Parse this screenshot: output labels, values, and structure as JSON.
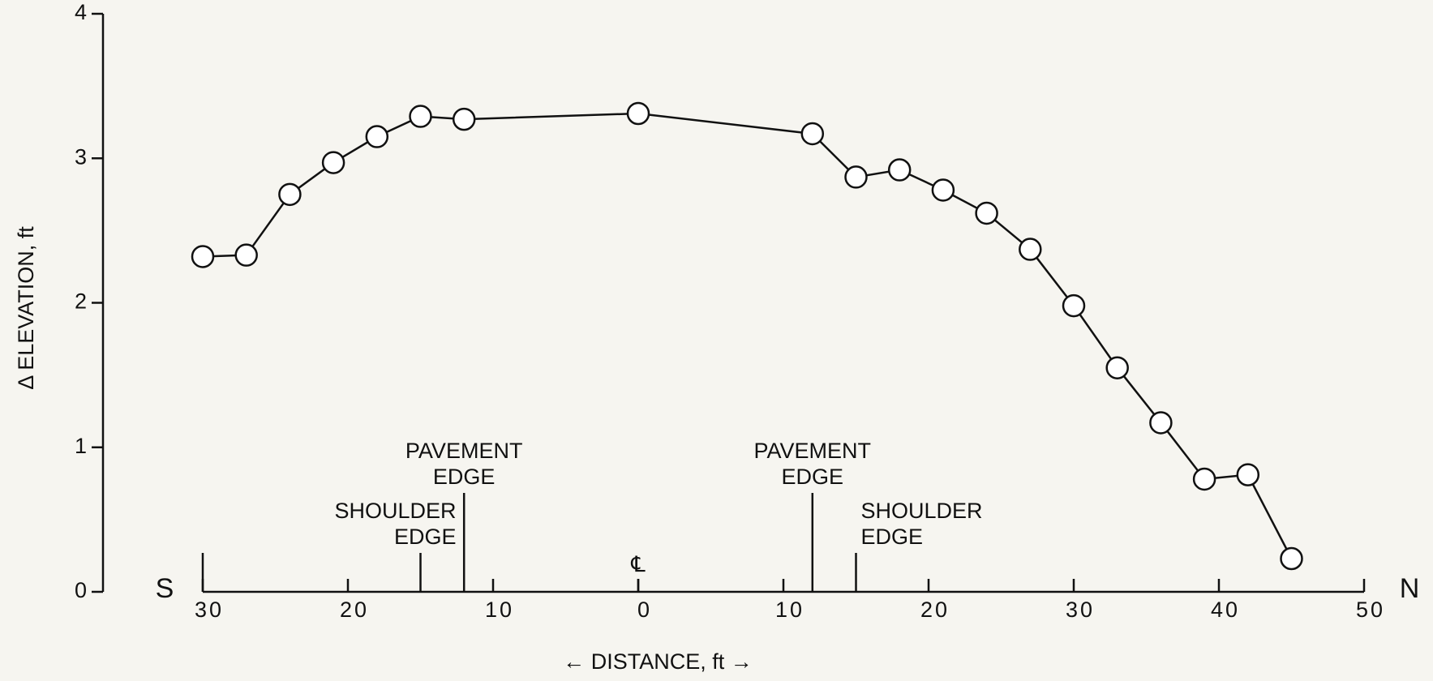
{
  "chart_data": {
    "type": "line",
    "ylabel": "Δ ELEVATION, ft",
    "xlabel": "← DISTANCE, ft →",
    "left_end_label": "S",
    "right_end_label": "N",
    "x": [
      -30,
      -27,
      -24,
      -21,
      -18,
      -15,
      -12,
      0,
      12,
      15,
      18,
      21,
      24,
      27,
      30,
      33,
      36,
      39,
      42,
      45
    ],
    "series": [
      {
        "name": null,
        "color": "#111111",
        "values": [
          2.32,
          2.33,
          2.75,
          2.97,
          3.15,
          3.29,
          3.27,
          3.31,
          3.17,
          2.87,
          2.92,
          2.78,
          2.62,
          2.37,
          1.98,
          1.55,
          1.17,
          0.78,
          0.81,
          0.23
        ]
      }
    ],
    "xlim": [
      -30,
      50
    ],
    "xticks": [
      {
        "value": -30,
        "label": "30"
      },
      {
        "value": -20,
        "label": "20"
      },
      {
        "value": -10,
        "label": "10"
      },
      0,
      10,
      20,
      30,
      40,
      50
    ],
    "ylim": [
      0,
      4
    ],
    "yticks": [
      0,
      1,
      2,
      3,
      4
    ],
    "grid": false,
    "markers": [
      {
        "x": -12,
        "lines": [
          "PAVEMENT",
          "EDGE"
        ]
      },
      {
        "x": -15,
        "lines": [
          "SHOULDER",
          "EDGE"
        ]
      },
      {
        "x": 12,
        "lines": [
          "PAVEMENT",
          "EDGE"
        ]
      },
      {
        "x": 15,
        "lines": [
          "SHOULDER",
          "EDGE"
        ]
      }
    ],
    "centerline": {
      "x": 0,
      "label": "℄"
    }
  }
}
